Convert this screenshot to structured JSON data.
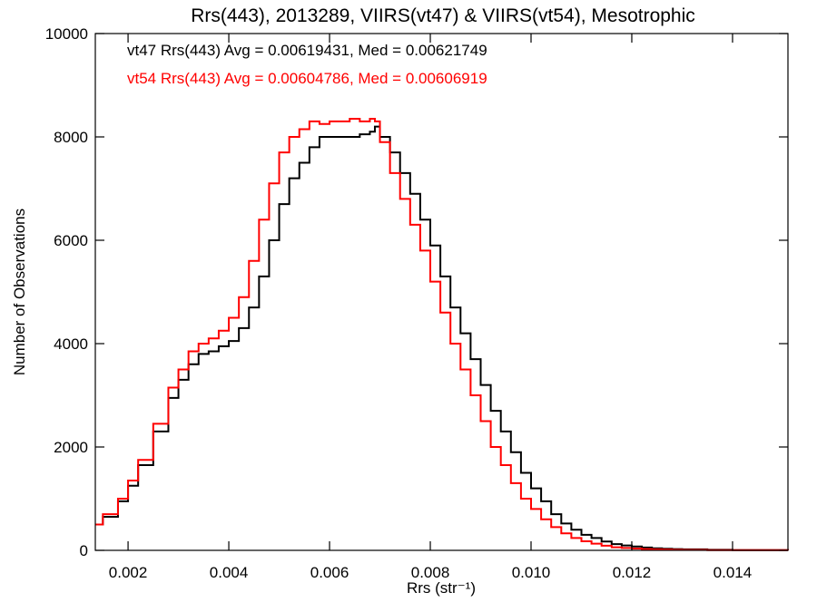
{
  "chart_data": {
    "type": "line",
    "title": "Rrs(443), 2013289, VIIRS(vt47) & VIIRS(vt54), Mesotrophic",
    "xlabel": "Rrs (str⁻¹)",
    "ylabel": "Number of Observations",
    "xlim": [
      0.00135,
      0.0151
    ],
    "ylim": [
      0,
      10000
    ],
    "x_ticks": [
      "0.002",
      "0.004",
      "0.006",
      "0.008",
      "0.010",
      "0.012",
      "0.014"
    ],
    "x_tick_values": [
      0.002,
      0.004,
      0.006,
      0.008,
      0.01,
      0.012,
      0.014
    ],
    "y_ticks": [
      "0",
      "2000",
      "4000",
      "6000",
      "8000",
      "10000"
    ],
    "y_tick_values": [
      0,
      2000,
      4000,
      6000,
      8000,
      10000
    ],
    "grid": false,
    "annotations": [
      {
        "text": "vt47 Rrs(443) Avg = 0.00619431, Med = 0.00621749",
        "color": "#000000"
      },
      {
        "text": "vt54 Rrs(443) Avg = 0.00604786, Med = 0.00606919",
        "color": "#ff0000"
      }
    ],
    "series": [
      {
        "color": "#000000",
        "style": "step",
        "x": [
          0.00135,
          0.0015,
          0.0018,
          0.002,
          0.0022,
          0.0025,
          0.0028,
          0.003,
          0.0032,
          0.0034,
          0.0036,
          0.0038,
          0.004,
          0.0042,
          0.0044,
          0.0046,
          0.0048,
          0.005,
          0.0052,
          0.0054,
          0.0056,
          0.0058,
          0.006,
          0.0062,
          0.0064,
          0.0066,
          0.0068,
          0.0069,
          0.007,
          0.0072,
          0.0074,
          0.0076,
          0.0078,
          0.008,
          0.0082,
          0.0084,
          0.0086,
          0.0088,
          0.009,
          0.0092,
          0.0094,
          0.0096,
          0.0098,
          0.01,
          0.0102,
          0.0104,
          0.0106,
          0.0108,
          0.011,
          0.0112,
          0.0114,
          0.0116,
          0.0118,
          0.012,
          0.0122,
          0.0124,
          0.0126,
          0.0128,
          0.013,
          0.0135,
          0.014,
          0.0145,
          0.0151
        ],
        "y": [
          500,
          650,
          950,
          1250,
          1650,
          2300,
          2950,
          3300,
          3600,
          3800,
          3850,
          3950,
          4050,
          4300,
          4700,
          5300,
          6000,
          6700,
          7200,
          7500,
          7800,
          8000,
          8000,
          8000,
          8000,
          8050,
          8100,
          8200,
          8000,
          7700,
          7300,
          6900,
          6400,
          5900,
          5300,
          4700,
          4200,
          3700,
          3200,
          2700,
          2300,
          1900,
          1500,
          1200,
          950,
          700,
          520,
          400,
          300,
          240,
          170,
          120,
          95,
          75,
          55,
          40,
          30,
          25,
          20,
          10,
          5,
          5,
          0
        ]
      },
      {
        "color": "#ff0000",
        "style": "step",
        "x": [
          0.00135,
          0.0015,
          0.0018,
          0.002,
          0.0022,
          0.0025,
          0.0028,
          0.003,
          0.0032,
          0.0034,
          0.0036,
          0.0038,
          0.004,
          0.0042,
          0.0044,
          0.0046,
          0.0048,
          0.005,
          0.0052,
          0.0054,
          0.0056,
          0.0058,
          0.006,
          0.0062,
          0.0064,
          0.0066,
          0.0068,
          0.0069,
          0.007,
          0.0072,
          0.0074,
          0.0076,
          0.0078,
          0.008,
          0.0082,
          0.0084,
          0.0086,
          0.0088,
          0.009,
          0.0092,
          0.0094,
          0.0096,
          0.0098,
          0.01,
          0.0102,
          0.0104,
          0.0106,
          0.0108,
          0.011,
          0.0112,
          0.0114,
          0.0116,
          0.0118,
          0.012,
          0.0122,
          0.0124,
          0.0126,
          0.0128,
          0.013,
          0.0135,
          0.014,
          0.0145,
          0.0151
        ],
        "y": [
          500,
          700,
          1000,
          1350,
          1750,
          2450,
          3150,
          3500,
          3850,
          4000,
          4100,
          4250,
          4500,
          4900,
          5600,
          6400,
          7100,
          7700,
          8000,
          8150,
          8300,
          8250,
          8300,
          8300,
          8350,
          8300,
          8350,
          8300,
          7900,
          7300,
          6800,
          6300,
          5800,
          5200,
          4600,
          4000,
          3500,
          3000,
          2500,
          2000,
          1650,
          1300,
          1000,
          800,
          600,
          450,
          330,
          240,
          175,
          130,
          90,
          60,
          45,
          35,
          25,
          20,
          15,
          10,
          8,
          5,
          5,
          5,
          0
        ]
      }
    ]
  }
}
